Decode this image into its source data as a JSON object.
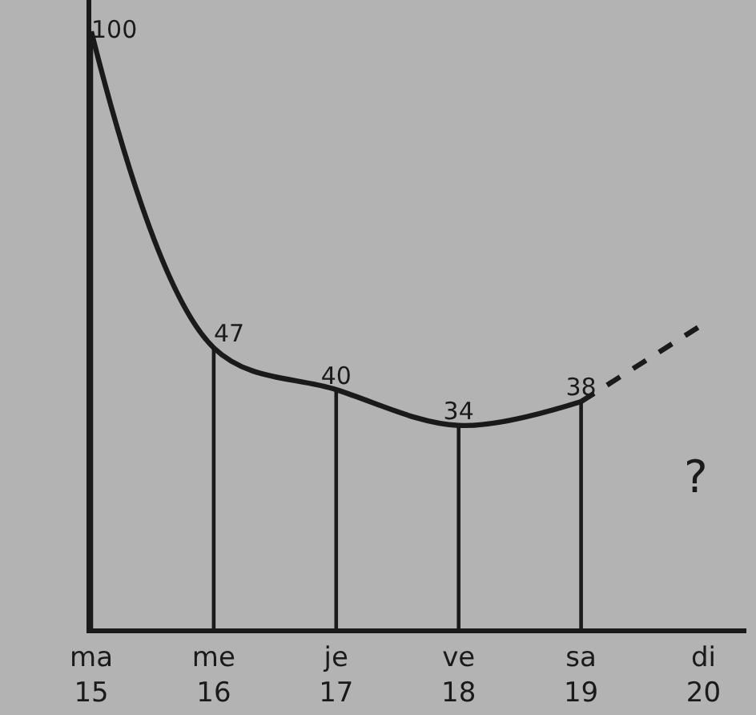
{
  "chart_data": {
    "type": "line",
    "categories": [
      "ma\n15",
      "me\n16",
      "je\n17",
      "ve\n18",
      "sa\n19",
      "di\n20"
    ],
    "tick_labels": "x",
    "series": [
      {
        "type": "bar",
        "color": "#1a1a1a",
        "values": [
          100,
          47,
          40,
          34,
          38,
          null
        ],
        "value_labels": [
          "100",
          "47",
          "40",
          "34",
          "38",
          null
        ]
      },
      {
        "color": "#1a1a1a",
        "line_style": "solid",
        "values": [
          100,
          47,
          40,
          34,
          38,
          null
        ]
      },
      {
        "color": "#1a1a1a",
        "line_style": "dashed",
        "values": [
          null,
          null,
          null,
          null,
          38,
          51
        ]
      }
    ],
    "annotations": [
      "?"
    ]
  }
}
